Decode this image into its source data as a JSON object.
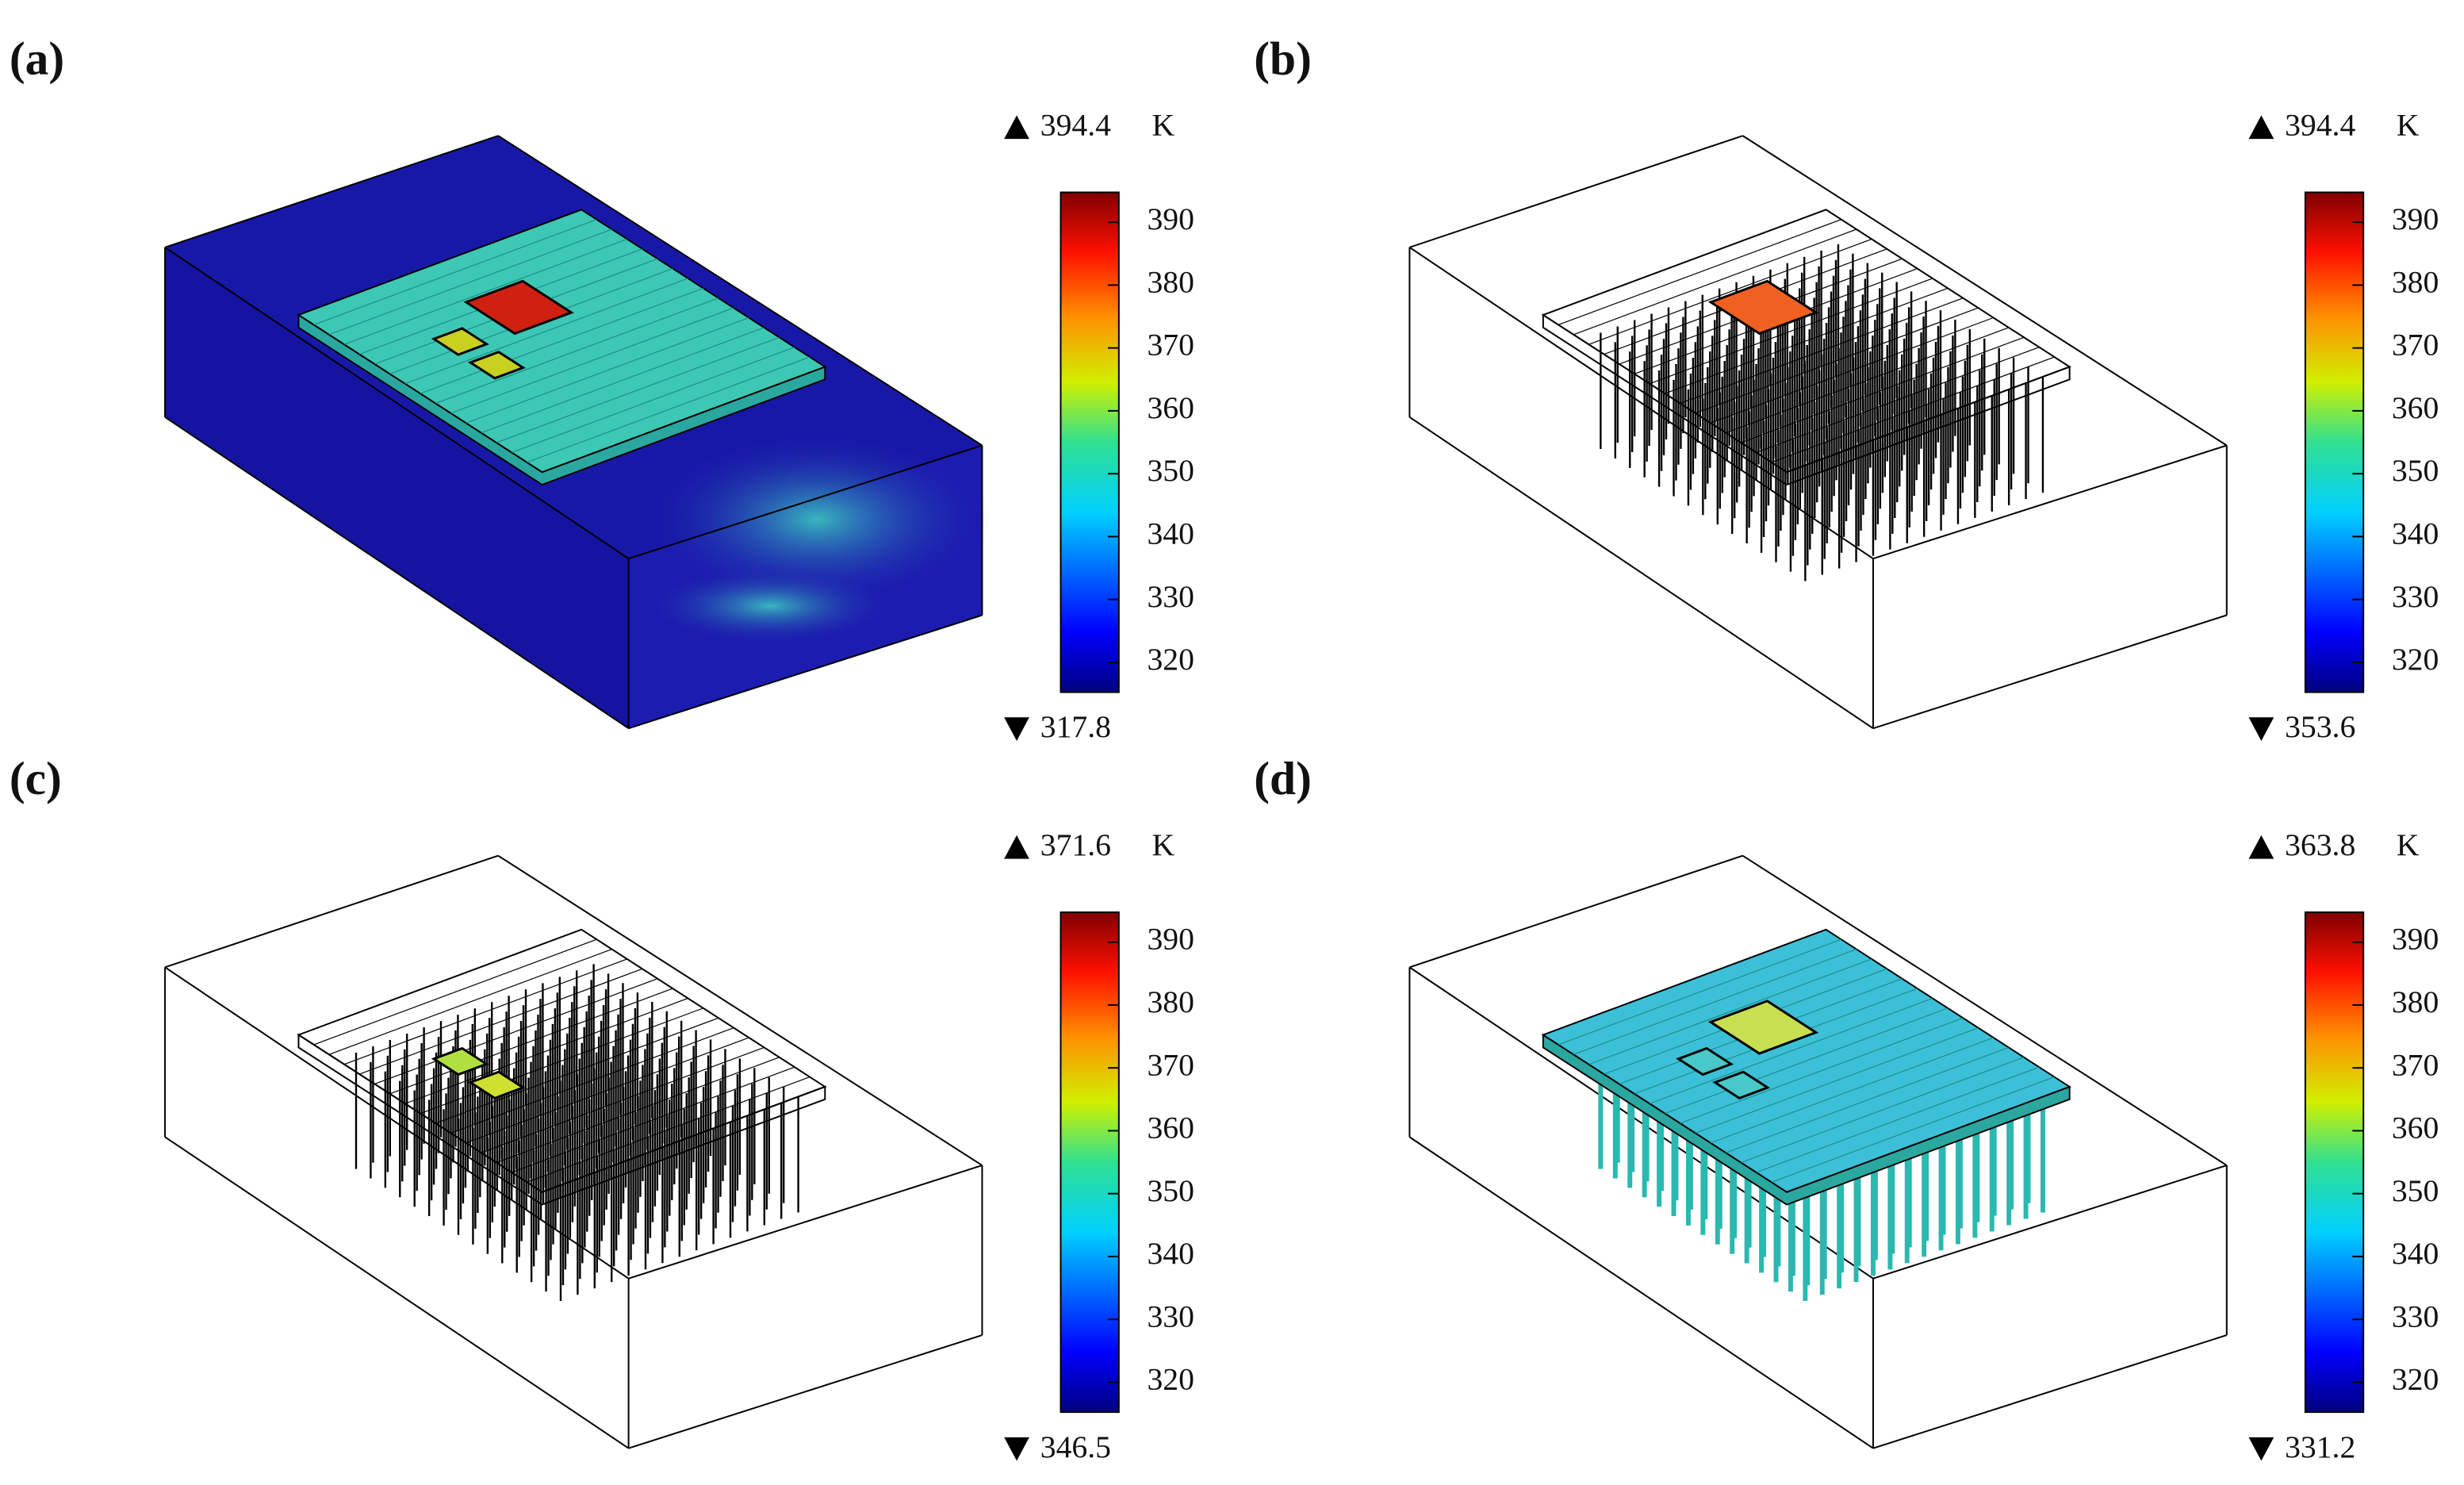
{
  "panels": [
    {
      "label": "(a)",
      "max": "394.4",
      "min": "317.8",
      "unit": "K",
      "ticks": [
        390,
        380,
        370,
        360,
        350,
        340,
        330,
        320
      ]
    },
    {
      "label": "(b)",
      "max": "394.4",
      "min": "353.6",
      "unit": "K",
      "ticks": [
        390,
        380,
        370,
        360,
        350,
        340,
        330,
        320
      ]
    },
    {
      "label": "(c)",
      "max": "371.6",
      "min": "346.5",
      "unit": "K",
      "ticks": [
        390,
        380,
        370,
        360,
        350,
        340,
        330,
        320
      ]
    },
    {
      "label": "(d)",
      "max": "363.8",
      "min": "331.2",
      "unit": "K",
      "ticks": [
        390,
        380,
        370,
        360,
        350,
        340,
        330,
        320
      ]
    }
  ]
}
